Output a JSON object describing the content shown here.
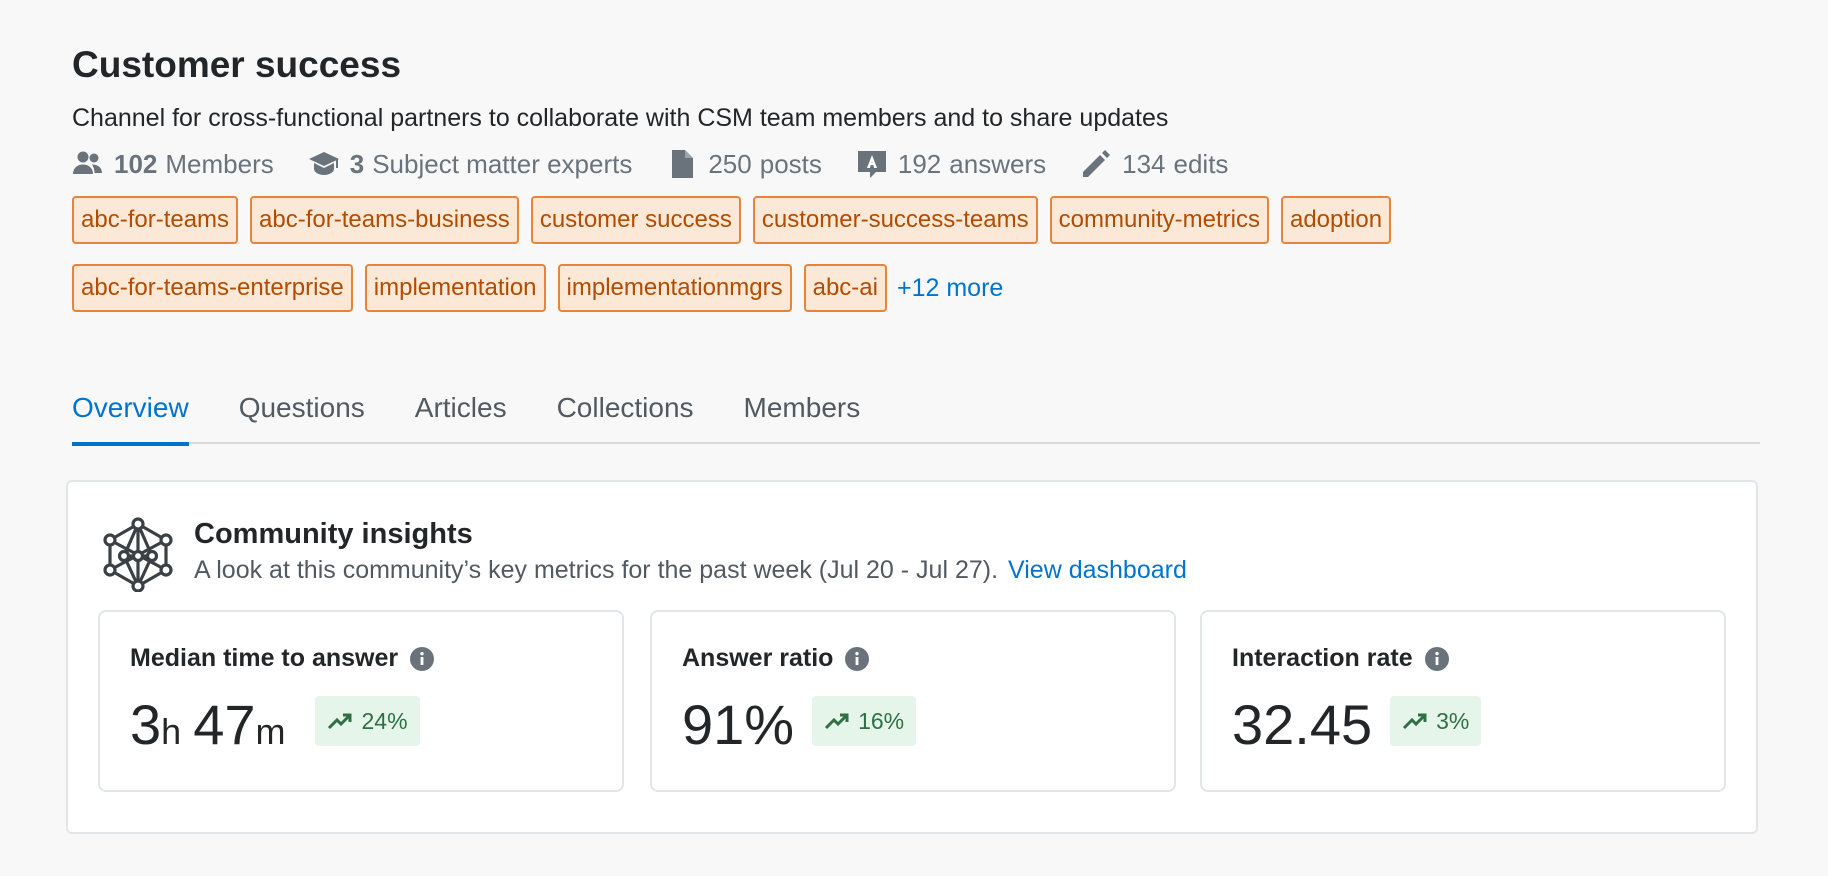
{
  "header": {
    "title": "Customer success",
    "description": "Channel for cross-functional partners to collaborate with CSM team members and to share updates"
  },
  "stats": {
    "members_count": "102",
    "members_label": "Members",
    "experts_count": "3",
    "experts_label": "Subject matter experts",
    "posts_count": "250",
    "posts_label": "posts",
    "answers_count": "192",
    "answers_label": "answers",
    "edits_count": "134",
    "edits_label": "edits"
  },
  "tags": [
    "abc-for-teams",
    "abc-for-teams-business",
    "customer success",
    "customer-success-teams",
    "community-metrics",
    "adoption",
    "abc-for-teams-enterprise",
    "implementation",
    "implementationmgrs",
    "abc-ai"
  ],
  "tags_more": "+12 more",
  "tabs": [
    {
      "label": "Overview",
      "active": true
    },
    {
      "label": "Questions"
    },
    {
      "label": "Articles"
    },
    {
      "label": "Collections"
    },
    {
      "label": "Members"
    }
  ],
  "insights": {
    "icon": "network-icon",
    "title": "Community insights",
    "subtitle": "A look at this community’s key metrics for the past week (Jul 20 - Jul 27).",
    "link": "View dashboard",
    "metrics": [
      {
        "label": "Median time to answer",
        "hours": "3",
        "hours_unit": "h",
        "minutes": "47",
        "minutes_unit": "m",
        "change": "24%"
      },
      {
        "label": "Answer ratio",
        "value": "91%",
        "change": "16%"
      },
      {
        "label": "Interaction rate",
        "value": "32.45",
        "change": "3%"
      }
    ]
  },
  "colors": {
    "accent": "#0074cc",
    "tag_border": "#e8833a",
    "tag_bg": "#fce8d6",
    "tag_text": "#b14c00",
    "positive": "#2f6f44",
    "positive_bg": "#e6f5ea"
  }
}
